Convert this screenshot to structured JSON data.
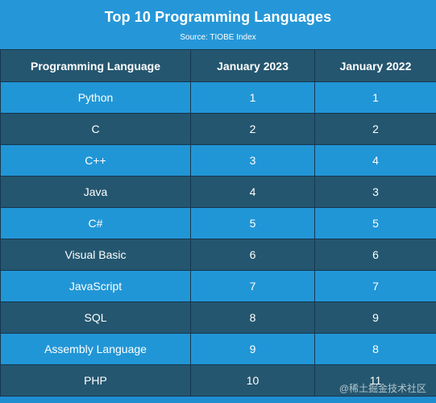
{
  "title": "Top 10 Programming Languages",
  "source": "Source: TIOBE Index",
  "columns": {
    "language": "Programming Language",
    "jan2023": "January 2023",
    "jan2022": "January 2022"
  },
  "rows": [
    {
      "language": "Python",
      "jan2023": "1",
      "jan2022": "1"
    },
    {
      "language": "C",
      "jan2023": "2",
      "jan2022": "2"
    },
    {
      "language": "C++",
      "jan2023": "3",
      "jan2022": "4"
    },
    {
      "language": "Java",
      "jan2023": "4",
      "jan2022": "3"
    },
    {
      "language": "C#",
      "jan2023": "5",
      "jan2022": "5"
    },
    {
      "language": "Visual Basic",
      "jan2023": "6",
      "jan2022": "6"
    },
    {
      "language": "JavaScript",
      "jan2023": "7",
      "jan2022": "7"
    },
    {
      "language": "SQL",
      "jan2023": "8",
      "jan2022": "9"
    },
    {
      "language": "Assembly Language",
      "jan2023": "9",
      "jan2022": "8"
    },
    {
      "language": "PHP",
      "jan2023": "10",
      "jan2022": "11"
    }
  ],
  "watermark": "@稀土掘金技术社区",
  "colors": {
    "background": "#1f8ed0",
    "header_row": "#25566f",
    "light_row": "#2196d6",
    "dark_row": "#24566f",
    "text": "#ffffff"
  }
}
